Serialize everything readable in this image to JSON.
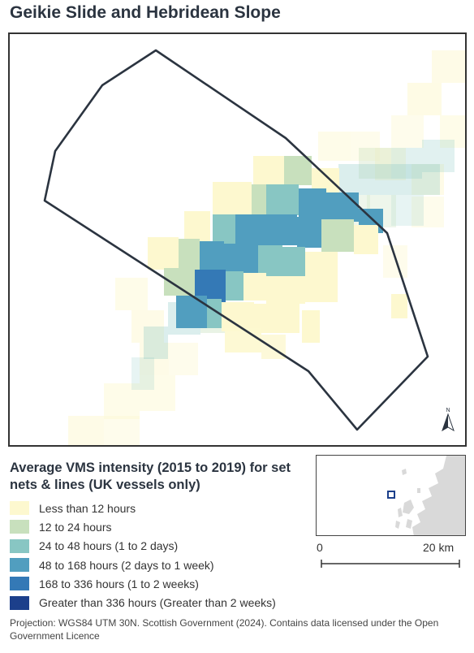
{
  "map": {
    "title": "Geikie Slide and Hebridean Slope"
  },
  "legend": {
    "title": "Average VMS intensity (2015 to 2019) for set nets & lines (UK vessels only)",
    "items": [
      {
        "label": "Less than 12 hours",
        "color": "#fdf8cf"
      },
      {
        "label": "12 to 24 hours",
        "color": "#c8e0bd"
      },
      {
        "label": "24 to 48 hours (1 to 2 days)",
        "color": "#88c6c3"
      },
      {
        "label": "48 to 168 hours (2 days to 1 week)",
        "color": "#519ebf"
      },
      {
        "label": "168 to 336 hours (1 to 2 weeks)",
        "color": "#3479b6"
      },
      {
        "label": "Greater than 336 hours (Greater than 2 weeks)",
        "color": "#1c3f8b"
      }
    ]
  },
  "scale": {
    "start_label": "0",
    "end_label": "20 km"
  },
  "north_arrow": {
    "label": "N",
    "icon": "north-arrow-icon"
  },
  "footer": {
    "text": "Projection: WGS84 UTM 30N. Scottish Government (2024). Contains data licensed under the Open Government Licence"
  },
  "colors": {
    "boundary": "#2b3440",
    "land": "#d9d9d9",
    "site_marker": "#1c3f8b"
  }
}
